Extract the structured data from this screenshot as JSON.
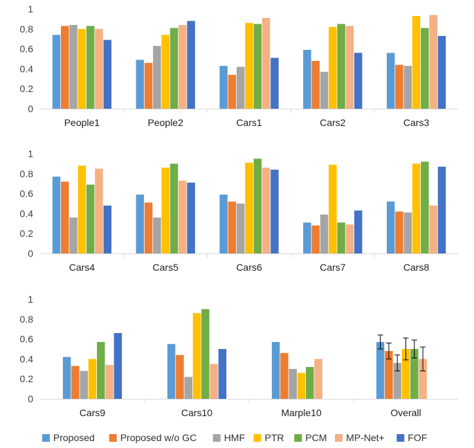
{
  "chart_data": {
    "type": "bar",
    "ylim": [
      0,
      1
    ],
    "yticks": [
      "0",
      "0.2",
      "0.4",
      "0.6",
      "0.8",
      "1"
    ],
    "legend_position": "bottom",
    "grid": false,
    "series": [
      {
        "name": "Proposed",
        "color": "#5B9BD5"
      },
      {
        "name": "Proposed w/o GC",
        "color": "#ED7D31"
      },
      {
        "name": "HMF",
        "color": "#A5A5A5"
      },
      {
        "name": "PTR",
        "color": "#FFC000"
      },
      {
        "name": "PCM",
        "color": "#70AD47"
      },
      {
        "name": "MP-Net+",
        "color": "#F4B183"
      },
      {
        "name": "FOF",
        "color": "#4472C4"
      }
    ],
    "panels": [
      {
        "categories": [
          "People1",
          "People2",
          "Cars1",
          "Cars2",
          "Cars3"
        ],
        "values": [
          [
            0.74,
            0.83,
            0.84,
            0.8,
            0.83,
            0.8,
            0.69
          ],
          [
            0.49,
            0.46,
            0.63,
            0.74,
            0.81,
            0.84,
            0.88
          ],
          [
            0.43,
            0.34,
            0.42,
            0.86,
            0.85,
            0.91,
            0.51
          ],
          [
            0.59,
            0.48,
            0.37,
            0.82,
            0.85,
            0.83,
            0.56
          ],
          [
            0.56,
            0.44,
            0.43,
            0.93,
            0.81,
            0.94,
            0.73
          ]
        ]
      },
      {
        "categories": [
          "Cars4",
          "Cars5",
          "Cars6",
          "Cars7",
          "Cars8"
        ],
        "values": [
          [
            0.77,
            0.72,
            0.36,
            0.88,
            0.69,
            0.85,
            0.48
          ],
          [
            0.59,
            0.51,
            0.36,
            0.86,
            0.9,
            0.73,
            0.71
          ],
          [
            0.59,
            0.52,
            0.5,
            0.91,
            0.95,
            0.86,
            0.84
          ],
          [
            0.31,
            0.28,
            0.39,
            0.89,
            0.31,
            0.29,
            0.43
          ],
          [
            0.52,
            0.42,
            0.41,
            0.9,
            0.92,
            0.48,
            0.87
          ]
        ]
      },
      {
        "categories": [
          "Cars9",
          "Cars10",
          "Marple10",
          "Overall"
        ],
        "values": [
          [
            0.42,
            0.33,
            0.28,
            0.4,
            0.57,
            0.34,
            0.66
          ],
          [
            0.55,
            0.44,
            0.22,
            0.86,
            0.9,
            0.35,
            0.5
          ],
          [
            0.57,
            0.46,
            0.3,
            0.26,
            0.32,
            0.4,
            null
          ],
          [
            0.57,
            0.48,
            0.36,
            0.5,
            0.5,
            0.4,
            null
          ]
        ],
        "error_bars": {
          "category": "Overall",
          "errors": [
            0.07,
            0.08,
            0.08,
            0.11,
            0.09,
            0.12,
            null
          ]
        }
      }
    ]
  }
}
